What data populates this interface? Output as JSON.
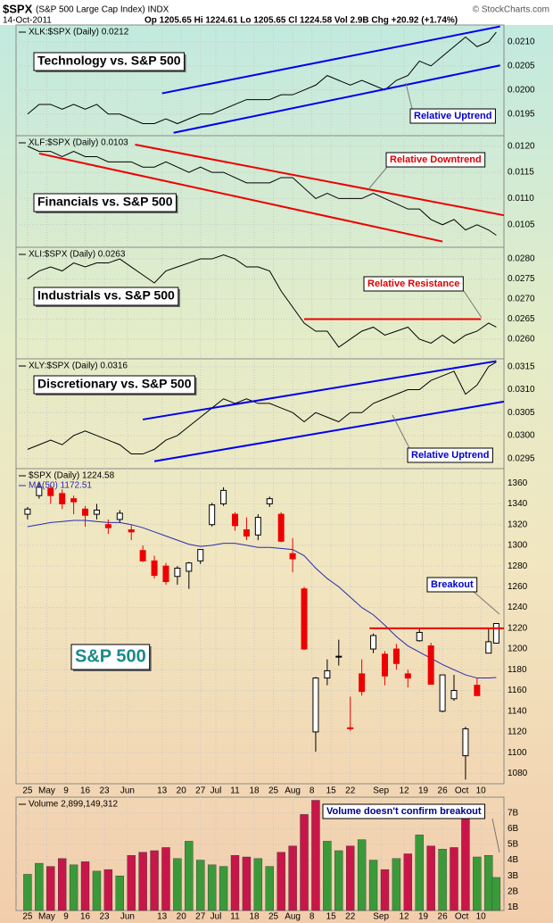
{
  "header": {
    "symbol": "$SPX",
    "name": "(S&P 500 Large Cap Index) INDX",
    "date": "14-Oct-2011",
    "quote": "Op 1205.65 Hi 1224.61 Lo 1205.65 Cl 1224.58 Vol 2.9B Chg +20.92 (+1.74%)",
    "credit": "© StockCharts.com"
  },
  "chart_data": [
    {
      "type": "line",
      "label": "XLK:$SPX (Daily) 0.0212",
      "title": "Technology vs. S&P 500",
      "annotation": "Relative Uptrend",
      "x": [
        0,
        3,
        6,
        9,
        12,
        15,
        18,
        21,
        24,
        27,
        30,
        33,
        36,
        39,
        42,
        45,
        48,
        51,
        54,
        57,
        60,
        63,
        66,
        69,
        72,
        75,
        78,
        81,
        84,
        87,
        90,
        93,
        96,
        99,
        102,
        105,
        108,
        111,
        114,
        117,
        120,
        122
      ],
      "values": [
        0.0195,
        0.0197,
        0.0197,
        0.0196,
        0.0197,
        0.0196,
        0.0197,
        0.0195,
        0.0195,
        0.0194,
        0.0193,
        0.0193,
        0.0194,
        0.0193,
        0.0194,
        0.0195,
        0.0195,
        0.0196,
        0.0197,
        0.0198,
        0.0198,
        0.0198,
        0.0199,
        0.0199,
        0.02,
        0.0201,
        0.0203,
        0.0202,
        0.0201,
        0.0202,
        0.0201,
        0.02,
        0.0202,
        0.0203,
        0.0206,
        0.0205,
        0.0207,
        0.0209,
        0.0211,
        0.0209,
        0.021,
        0.0212
      ],
      "color": "#000000",
      "xlim": [
        -3,
        124
      ],
      "ylim": [
        0.01905,
        0.02135
      ],
      "yticks": [
        0.0195,
        {
          "value": 0.02,
          "label": "0.0200"
        },
        0.0205,
        {
          "value": 0.021,
          "label": "0.0210"
        }
      ],
      "trendlines": [
        {
          "x": [
            35,
            123
          ],
          "values": [
            0.01993,
            0.02132
          ],
          "color": "#0000ee"
        },
        {
          "x": [
            38,
            123
          ],
          "values": [
            0.01911,
            0.02051
          ],
          "color": "#0000ee"
        }
      ]
    },
    {
      "type": "line",
      "label": "XLF:$SPX (Daily) 0.0103",
      "title": "Financials vs. S&P 500",
      "annotation": "Relative Downtrend",
      "x": [
        0,
        3,
        6,
        9,
        12,
        15,
        18,
        21,
        24,
        27,
        30,
        33,
        36,
        39,
        42,
        45,
        48,
        51,
        54,
        57,
        60,
        63,
        66,
        69,
        72,
        75,
        78,
        81,
        84,
        87,
        90,
        93,
        96,
        99,
        102,
        105,
        108,
        111,
        114,
        117,
        120,
        122
      ],
      "values": [
        0.012,
        0.0119,
        0.0119,
        0.0118,
        0.0119,
        0.0118,
        0.0118,
        0.0117,
        0.0117,
        0.0117,
        0.0116,
        0.0116,
        0.0117,
        0.0116,
        0.0115,
        0.0116,
        0.0115,
        0.0115,
        0.0114,
        0.0113,
        0.0113,
        0.0113,
        0.0114,
        0.0114,
        0.0112,
        0.011,
        0.0111,
        0.011,
        0.011,
        0.011,
        0.0111,
        0.011,
        0.0109,
        0.0108,
        0.0108,
        0.0106,
        0.0105,
        0.0106,
        0.0104,
        0.0105,
        0.0104,
        0.0103
      ],
      "color": "#000000",
      "xlim": [
        -3,
        124
      ],
      "ylim": [
        0.01007,
        0.0122
      ],
      "yticks": [
        0.0105,
        {
          "value": 0.011,
          "label": "0.0110"
        },
        0.0115,
        {
          "value": 0.012,
          "label": "0.0120"
        }
      ],
      "trendlines": [
        {
          "x": [
            28,
            124
          ],
          "values": [
            0.01203,
            0.01068
          ],
          "color": "#ee0000"
        },
        {
          "x": [
            3,
            108
          ],
          "values": [
            0.01186,
            0.01018
          ],
          "color": "#ee0000"
        }
      ]
    },
    {
      "type": "line",
      "label": "XLI:$SPX (Daily) 0.0263",
      "title": "Industrials vs. S&P 500",
      "annotation": "Relative Resistance",
      "x": [
        0,
        3,
        6,
        9,
        12,
        15,
        18,
        21,
        24,
        27,
        30,
        33,
        36,
        39,
        42,
        45,
        48,
        51,
        54,
        57,
        60,
        63,
        66,
        69,
        72,
        75,
        78,
        81,
        84,
        87,
        90,
        93,
        96,
        99,
        102,
        105,
        108,
        111,
        114,
        117,
        120,
        122
      ],
      "values": [
        0.0275,
        0.0277,
        0.0278,
        0.0277,
        0.0279,
        0.0278,
        0.0279,
        0.0279,
        0.028,
        0.0278,
        0.0276,
        0.0274,
        0.0277,
        0.0278,
        0.0279,
        0.028,
        0.028,
        0.0281,
        0.028,
        0.0278,
        0.0278,
        0.0277,
        0.0272,
        0.0268,
        0.0264,
        0.0262,
        0.0262,
        0.0258,
        0.026,
        0.0262,
        0.0263,
        0.0261,
        0.0262,
        0.0263,
        0.026,
        0.0259,
        0.0261,
        0.0259,
        0.0261,
        0.0262,
        0.0264,
        0.0263
      ],
      "color": "#000000",
      "xlim": [
        -3,
        124
      ],
      "ylim": [
        0.02551,
        0.02829
      ],
      "yticks": [
        {
          "value": 0.026,
          "label": "0.0260"
        },
        0.0265,
        {
          "value": 0.027,
          "label": "0.0270"
        },
        0.0275,
        {
          "value": 0.028,
          "label": "0.0280"
        }
      ],
      "trendlines": [
        {
          "x": [
            72,
            118
          ],
          "values": [
            0.0265,
            0.0265
          ],
          "color": "#ee0000"
        }
      ]
    },
    {
      "type": "line",
      "label": "XLY:$SPX (Daily) 0.0316",
      "title": "Discretionary vs. S&P 500",
      "annotation": "Relative Uptrend",
      "x": [
        0,
        3,
        6,
        9,
        12,
        15,
        18,
        21,
        24,
        27,
        30,
        33,
        36,
        39,
        42,
        45,
        48,
        51,
        54,
        57,
        60,
        63,
        66,
        69,
        72,
        75,
        78,
        81,
        84,
        87,
        90,
        93,
        96,
        99,
        102,
        105,
        108,
        111,
        114,
        117,
        120,
        122
      ],
      "values": [
        0.0297,
        0.0298,
        0.0299,
        0.0298,
        0.03,
        0.0301,
        0.03,
        0.0299,
        0.0298,
        0.0296,
        0.0296,
        0.0297,
        0.0299,
        0.03,
        0.0302,
        0.0304,
        0.0306,
        0.0308,
        0.0307,
        0.0308,
        0.0307,
        0.0307,
        0.0306,
        0.0305,
        0.0303,
        0.0305,
        0.0304,
        0.0303,
        0.0305,
        0.0305,
        0.0307,
        0.0308,
        0.0309,
        0.031,
        0.031,
        0.0312,
        0.0313,
        0.0314,
        0.0309,
        0.0311,
        0.0315,
        0.0316
      ],
      "color": "#000000",
      "xlim": [
        -3,
        124
      ],
      "ylim": [
        0.02928,
        0.03167
      ],
      "yticks": [
        0.0295,
        {
          "value": 0.03,
          "label": "0.0300"
        },
        0.0305,
        {
          "value": 0.031,
          "label": "0.0310"
        },
        0.0315
      ],
      "trendlines": [
        {
          "x": [
            30,
            122
          ],
          "values": [
            0.03035,
            0.03162
          ],
          "color": "#0000ee"
        },
        {
          "x": [
            33,
            124
          ],
          "values": [
            0.02944,
            0.03074
          ],
          "color": "#0000ee"
        }
      ]
    },
    {
      "type": "candlestick",
      "label": "$SPX (Daily) 1224.58",
      "ma_label": "MA(50) 1172.51",
      "title": "S&P 500",
      "annotation": "Breakout",
      "x": [
        0,
        3,
        6,
        9,
        12,
        15,
        18,
        21,
        24,
        27,
        30,
        33,
        36,
        39,
        42,
        45,
        48,
        51,
        54,
        57,
        60,
        63,
        66,
        69,
        72,
        75,
        78,
        81,
        84,
        87,
        90,
        93,
        96,
        99,
        102,
        105,
        108,
        111,
        114,
        117,
        120,
        122
      ],
      "open": [
        1330,
        1348,
        1355,
        1350,
        1345,
        1335,
        1330,
        1320,
        1325,
        1315,
        1295,
        1285,
        1280,
        1270,
        1275,
        1285,
        1320,
        1340,
        1330,
        1315,
        1310,
        1340,
        1330,
        1292,
        1258,
        1120,
        1172,
        1193,
        1124,
        1176,
        1200,
        1195,
        1200,
        1176,
        1208,
        1203,
        1140,
        1152,
        1097,
        1165,
        1196,
        1205.65
      ],
      "high": [
        1337,
        1360,
        1358,
        1354,
        1348,
        1338,
        1340,
        1325,
        1334,
        1320,
        1300,
        1290,
        1283,
        1280,
        1284,
        1296,
        1341,
        1356,
        1332,
        1327,
        1330,
        1347,
        1332,
        1307,
        1260,
        1173,
        1190,
        1209,
        1154,
        1190,
        1215,
        1198,
        1205,
        1180,
        1220,
        1206,
        1175,
        1175,
        1125,
        1172,
        1220,
        1224.61
      ],
      "low": [
        1325,
        1345,
        1340,
        1335,
        1330,
        1318,
        1325,
        1311,
        1322,
        1305,
        1284,
        1268,
        1262,
        1262,
        1258,
        1282,
        1318,
        1338,
        1314,
        1305,
        1305,
        1337,
        1303,
        1274,
        1199,
        1101,
        1165,
        1184,
        1121,
        1155,
        1196,
        1165,
        1180,
        1163,
        1207,
        1166,
        1139,
        1150,
        1074,
        1155,
        1196,
        1205.65
      ],
      "close": [
        1335,
        1356,
        1348,
        1340,
        1342,
        1329,
        1334,
        1317,
        1331,
        1313,
        1285,
        1271,
        1265,
        1278,
        1283,
        1296,
        1339,
        1353,
        1319,
        1309,
        1327,
        1345,
        1304,
        1287,
        1200,
        1172,
        1179,
        1193,
        1123,
        1159,
        1213,
        1174,
        1186,
        1172,
        1216,
        1166,
        1175,
        1160,
        1123,
        1155,
        1207,
        1224.58
      ],
      "ma": [
        1318,
        1320,
        1322,
        1323,
        1324,
        1324,
        1323,
        1322,
        1322,
        1320,
        1317,
        1313,
        1309,
        1305,
        1301,
        1299,
        1300,
        1302,
        1302,
        1300,
        1298,
        1298,
        1297,
        1296,
        1290,
        1278,
        1268,
        1260,
        1250,
        1240,
        1233,
        1223,
        1212,
        1203,
        1197,
        1191,
        1185,
        1180,
        1175,
        1172,
        1172,
        1172.51
      ],
      "up_color": "#000000",
      "down_color": "#ee0000",
      "ma_color": "#2a2ab0",
      "xlim": [
        -3,
        124
      ],
      "ylim": [
        1070,
        1374
      ],
      "yticks": [
        1080,
        1100,
        1120,
        1140,
        1160,
        1180,
        1200,
        1220,
        1240,
        1260,
        1280,
        1300,
        1320,
        1340,
        1360
      ],
      "xticks": [
        {
          "value": 0,
          "label": "25"
        },
        {
          "value": 5,
          "label": "May"
        },
        {
          "value": 10,
          "label": "9"
        },
        {
          "value": 15,
          "label": "16"
        },
        {
          "value": 20,
          "label": "23"
        },
        {
          "value": 26,
          "label": "Jun"
        },
        {
          "value": 35,
          "label": "13"
        },
        {
          "value": 40,
          "label": "20"
        },
        {
          "value": 45,
          "label": "27"
        },
        {
          "value": 49,
          "label": "Jul"
        },
        {
          "value": 54,
          "label": "11"
        },
        {
          "value": 59,
          "label": "18"
        },
        {
          "value": 64,
          "label": "25"
        },
        {
          "value": 69,
          "label": "Aug"
        },
        {
          "value": 74,
          "label": "8"
        },
        {
          "value": 79,
          "label": "15"
        },
        {
          "value": 84,
          "label": "22"
        },
        {
          "value": 92,
          "label": "Sep"
        },
        {
          "value": 98,
          "label": "12"
        },
        {
          "value": 103,
          "label": "19"
        },
        {
          "value": 108,
          "label": "26"
        },
        {
          "value": 113,
          "label": "Oct"
        },
        {
          "value": 118,
          "label": "10"
        }
      ],
      "trendlines": [
        {
          "x": [
            89,
            124
          ],
          "values": [
            1220,
            1220
          ],
          "color": "#ee0000"
        }
      ]
    },
    {
      "type": "bar",
      "label": "Volume 2,899,149,312",
      "annotation": "Volume doesn't confirm breakout",
      "x": [
        0,
        3,
        6,
        9,
        12,
        15,
        18,
        21,
        24,
        27,
        30,
        33,
        36,
        39,
        42,
        45,
        48,
        51,
        54,
        57,
        60,
        63,
        66,
        69,
        72,
        75,
        78,
        81,
        84,
        87,
        90,
        93,
        96,
        99,
        102,
        105,
        108,
        111,
        114,
        117,
        120,
        122
      ],
      "values": [
        3100000000,
        3800000000,
        3600000000,
        4100000000,
        3700000000,
        3900000000,
        3300000000,
        3400000000,
        3000000000,
        4300000000,
        4500000000,
        4600000000,
        4800000000,
        4100000000,
        5200000000,
        4000000000,
        3700000000,
        3600000000,
        4300000000,
        4200000000,
        4100000000,
        3600000000,
        4500000000,
        4900000000,
        6900000000,
        7800000000,
        5200000000,
        4600000000,
        4900000000,
        5300000000,
        4000000000,
        3400000000,
        4100000000,
        4400000000,
        5600000000,
        4900000000,
        4700000000,
        4800000000,
        6800000000,
        4200000000,
        4300000000,
        2899149312
      ],
      "up_color": "#3a9a3a",
      "down_color": "#c8164a",
      "xlim": [
        -3,
        124
      ],
      "ylim": [
        800000000,
        8000000000
      ],
      "yticks": [
        {
          "value": 1000000000,
          "label": "1B"
        },
        {
          "value": 2000000000,
          "label": "2B"
        },
        {
          "value": 3000000000,
          "label": "3B"
        },
        {
          "value": 4000000000,
          "label": "4B"
        },
        {
          "value": 5000000000,
          "label": "5B"
        },
        {
          "value": 6000000000,
          "label": "6B"
        },
        {
          "value": 7000000000,
          "label": "7B"
        }
      ],
      "xticks": [
        {
          "value": 0,
          "label": "25"
        },
        {
          "value": 5,
          "label": "May"
        },
        {
          "value": 10,
          "label": "9"
        },
        {
          "value": 15,
          "label": "16"
        },
        {
          "value": 20,
          "label": "23"
        },
        {
          "value": 26,
          "label": "Jun"
        },
        {
          "value": 35,
          "label": "13"
        },
        {
          "value": 40,
          "label": "20"
        },
        {
          "value": 45,
          "label": "27"
        },
        {
          "value": 49,
          "label": "Jul"
        },
        {
          "value": 54,
          "label": "11"
        },
        {
          "value": 59,
          "label": "18"
        },
        {
          "value": 64,
          "label": "25"
        },
        {
          "value": 69,
          "label": "Aug"
        },
        {
          "value": 74,
          "label": "8"
        },
        {
          "value": 79,
          "label": "15"
        },
        {
          "value": 84,
          "label": "22"
        },
        {
          "value": 92,
          "label": "Sep"
        },
        {
          "value": 98,
          "label": "12"
        },
        {
          "value": 103,
          "label": "19"
        },
        {
          "value": 108,
          "label": "26"
        },
        {
          "value": 113,
          "label": "Oct"
        },
        {
          "value": 118,
          "label": "10"
        }
      ]
    }
  ]
}
